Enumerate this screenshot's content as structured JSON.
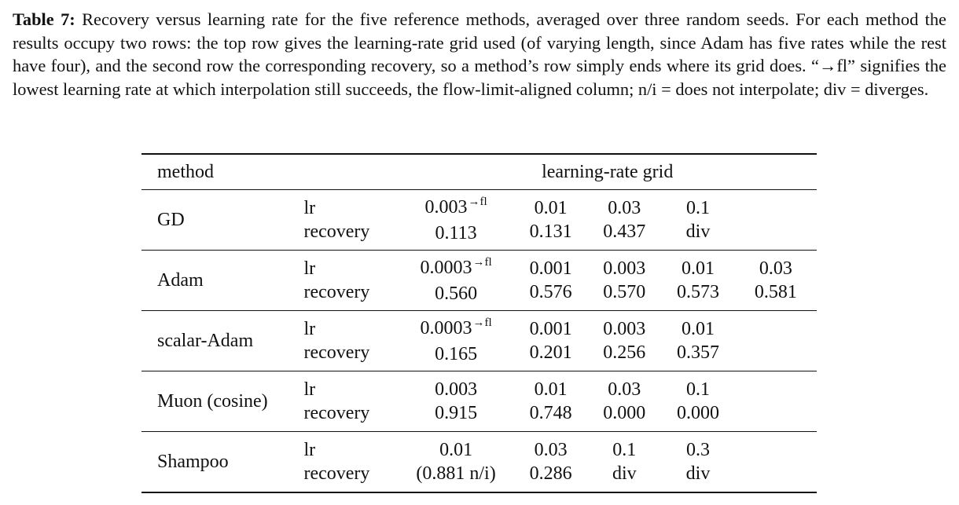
{
  "caption": {
    "label": "Table 7:",
    "text": "Recovery versus learning rate for the five reference methods, averaged over three random seeds. For each method the results occupy two rows: the top row gives the learning-rate grid used (of varying length, since Adam has five rates while the rest have four), and the second row the corresponding recovery, so a method’s row simply ends where its grid does. “→fl” signifies the lowest learning rate at which interpolation still succeeds, the flow-limit-aligned column; n/i = does not interpolate; div = diverges."
  },
  "table": {
    "header": {
      "method": "method",
      "grid": "learning-rate grid"
    },
    "row_labels": {
      "lr": "lr",
      "recovery": "recovery"
    },
    "fl_marker": "→fl",
    "rows": [
      {
        "method": "GD",
        "lr": [
          "0.003",
          "0.01",
          "0.03",
          "0.1",
          ""
        ],
        "recovery": [
          "0.113",
          "0.131",
          "0.437",
          "div",
          ""
        ],
        "fl_index": 0
      },
      {
        "method": "Adam",
        "lr": [
          "0.0003",
          "0.001",
          "0.003",
          "0.01",
          "0.03"
        ],
        "recovery": [
          "0.560",
          "0.576",
          "0.570",
          "0.573",
          "0.581"
        ],
        "fl_index": 0
      },
      {
        "method": "scalar-Adam",
        "lr": [
          "0.0003",
          "0.001",
          "0.003",
          "0.01",
          ""
        ],
        "recovery": [
          "0.165",
          "0.201",
          "0.256",
          "0.357",
          ""
        ],
        "fl_index": 0
      },
      {
        "method": "Muon (cosine)",
        "lr": [
          "0.003",
          "0.01",
          "0.03",
          "0.1",
          ""
        ],
        "recovery": [
          "0.915",
          "0.748",
          "0.000",
          "0.000",
          ""
        ],
        "fl_index": -1
      },
      {
        "method": "Shampoo",
        "lr": [
          "0.01",
          "0.03",
          "0.1",
          "0.3",
          ""
        ],
        "recovery": [
          "(0.881 n/i)",
          "0.286",
          "div",
          "div",
          ""
        ],
        "fl_index": -1
      }
    ]
  }
}
